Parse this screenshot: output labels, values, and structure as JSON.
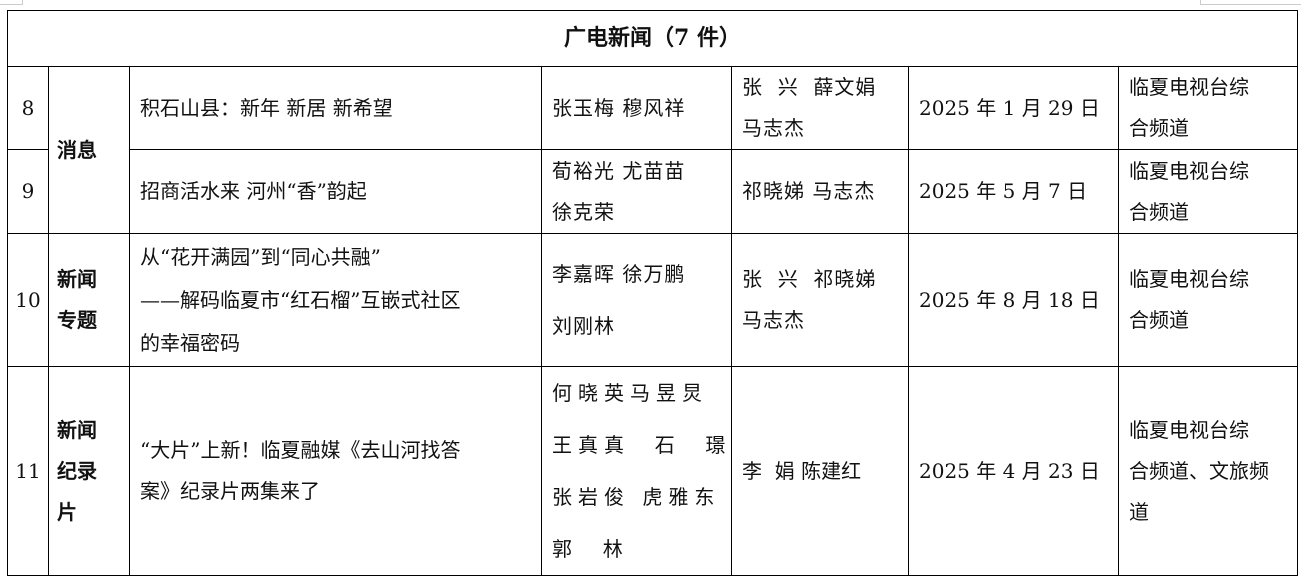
{
  "title": "广电新闻（7 件）",
  "rows": [
    {
      "num": "8",
      "category": "消息",
      "title": [
        "积石山县：新年 新居 新希望"
      ],
      "authors": [
        "张玉梅 穆风祥"
      ],
      "editors": [
        "张  兴  薛文娟",
        "马志杰"
      ],
      "date": "2025 年 1 月 29 日",
      "channel": [
        "临夏电视台综",
        "合频道"
      ]
    },
    {
      "num": "9",
      "category": "消息",
      "title": [
        "招商活水来 河州“香”韵起"
      ],
      "authors": [
        "荀裕光 尤苗苗",
        "徐克荣"
      ],
      "editors": [
        "祁晓娣 马志杰"
      ],
      "date": "2025 年 5 月 7 日",
      "channel": [
        "临夏电视台综",
        "合频道"
      ]
    },
    {
      "num": "10",
      "category": [
        "新闻",
        "专题"
      ],
      "title": [
        "从“花开满园”到“同心共融”",
        "——解码临夏市“红石榴”互嵌式社区",
        "的幸福密码"
      ],
      "authors": [
        "李嘉晖 徐万鹏",
        "刘刚林"
      ],
      "editors": [
        "张  兴  祁晓娣",
        "马志杰"
      ],
      "date": "2025 年 8 月 18 日",
      "channel": [
        "临夏电视台综",
        "合频道"
      ]
    },
    {
      "num": "11",
      "category": [
        "新闻",
        "纪录",
        "片"
      ],
      "title": [
        "“大片”上新！临夏融媒《去山河找答",
        "案》纪录片两集来了"
      ],
      "authors": [
        "何晓英马昱炅",
        "王真真  石  璟",
        "张岩俊 虎雅东",
        "郭  林"
      ],
      "editors": [
        "李  娟 陈建红"
      ],
      "date": "2025 年 4 月 23 日",
      "channel": [
        "临夏电视台综",
        "合频道、文旅频",
        "道"
      ]
    }
  ]
}
